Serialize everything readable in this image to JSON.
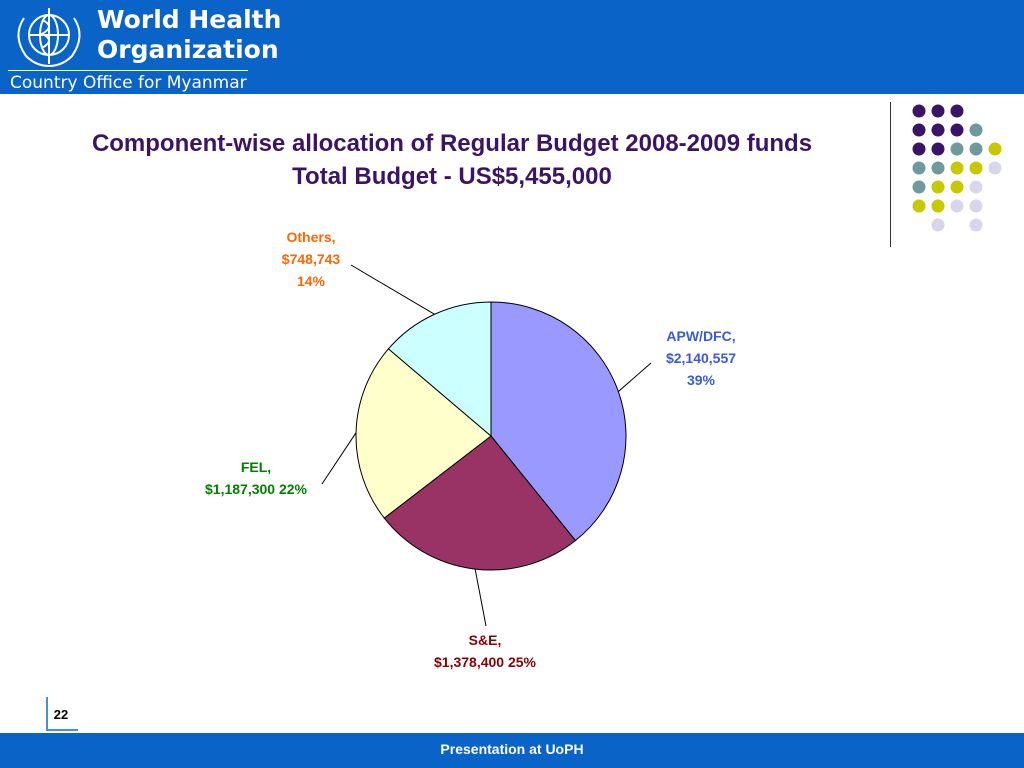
{
  "header": {
    "org_line1": "World Health",
    "org_line2": "Organization",
    "org_sub": "Country Office for Myanmar"
  },
  "slide": {
    "title_line1": "Component-wise allocation of Regular Budget 2008-2009 funds",
    "title_line2": "Total Budget - US$5,455,000",
    "page_number": "22",
    "footer": "Presentation at UoPH"
  },
  "colors": {
    "header_bg": "#0a64c8",
    "title": "#3b1466",
    "dot_purple": "#3b1466",
    "dot_teal": "#6f9a9c",
    "dot_yellow": "#c8c800",
    "dot_lavender": "#d8d6ea"
  },
  "chart_data": {
    "type": "pie",
    "categories": [
      "APW/DFC",
      "S&E",
      "FEL",
      "Others"
    ],
    "values": [
      2140557,
      1378400,
      1187300,
      748743
    ],
    "percents": [
      39,
      25,
      22,
      14
    ],
    "colors": [
      "#9999ff",
      "#993366",
      "#ffffcc",
      "#ccffff"
    ],
    "label_colors": [
      "#3a5bd9",
      "#8b0000",
      "#008000",
      "#ff6600"
    ],
    "labels": [
      [
        "APW/DFC,",
        "$2,140,557",
        "39%"
      ],
      [
        "S&E,",
        "$1,378,400 25%"
      ],
      [
        "FEL,",
        "$1,187,300 22%"
      ],
      [
        "Others,",
        "$748,743",
        "14%"
      ]
    ],
    "start_angle_deg": 90,
    "direction": "clockwise",
    "legend": "none"
  }
}
